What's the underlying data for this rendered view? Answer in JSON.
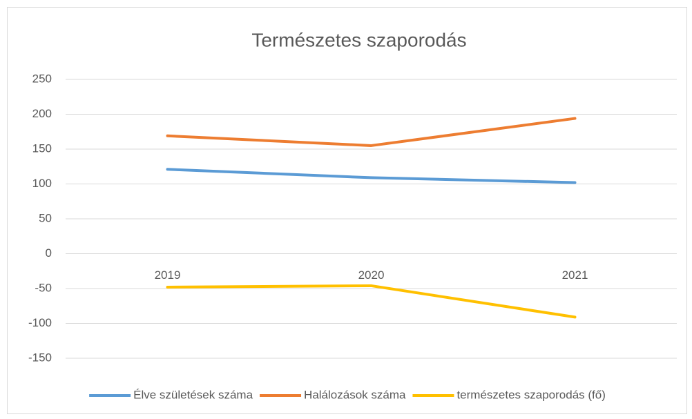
{
  "chart_data": {
    "type": "line",
    "title": "Természetes szaporodás",
    "categories": [
      "2019",
      "2020",
      "2021"
    ],
    "series": [
      {
        "name": "Élve születések száma",
        "color": "#5b9bd5",
        "values": [
          121,
          109,
          102
        ]
      },
      {
        "name": "Halálozások száma",
        "color": "#ed7d31",
        "values": [
          169,
          155,
          194
        ]
      },
      {
        "name": "természetes szaporodás (fő)",
        "color": "#ffc000",
        "values": [
          -48,
          -46,
          -91
        ]
      }
    ],
    "ylim": [
      -150,
      250
    ],
    "yticks": [
      -150,
      -100,
      -50,
      0,
      50,
      100,
      150,
      200,
      250
    ],
    "grid": true,
    "legend": "bottom"
  }
}
